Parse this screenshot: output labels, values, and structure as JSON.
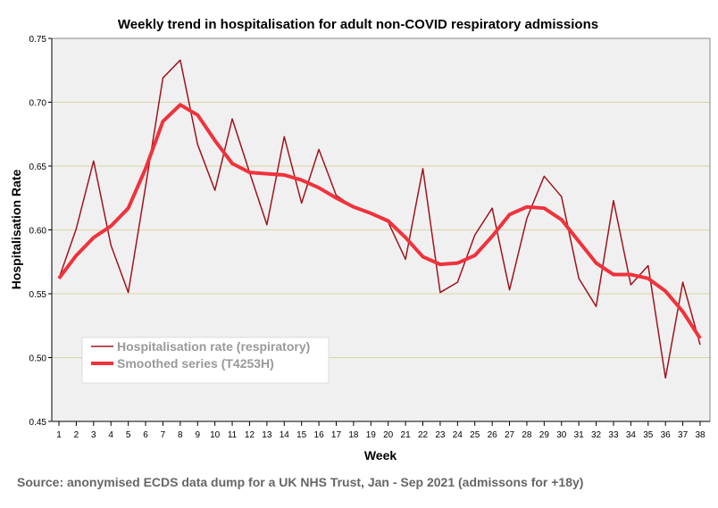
{
  "chart_data": {
    "type": "line",
    "title": "Weekly trend in hospitalisation for adult non-COVID respiratory admissions",
    "xlabel": "Week",
    "ylabel": "Hospitalisation Rate",
    "ylim": [
      0.45,
      0.75
    ],
    "yticks": [
      "0.45",
      "0.50",
      "0.55",
      "0.60",
      "0.65",
      "0.70",
      "0.75"
    ],
    "grid": true,
    "legend_placement": "bottom-left",
    "x": [
      1,
      2,
      3,
      4,
      5,
      6,
      7,
      8,
      9,
      10,
      11,
      12,
      13,
      14,
      15,
      16,
      17,
      18,
      19,
      20,
      21,
      22,
      23,
      24,
      25,
      26,
      27,
      28,
      29,
      30,
      31,
      32,
      33,
      34,
      35,
      36,
      37,
      38
    ],
    "series": [
      {
        "name": "Hospitalisation rate (respiratory)",
        "color": "#a0141e",
        "values": [
          0.562,
          0.601,
          0.654,
          0.588,
          0.551,
          0.634,
          0.719,
          0.733,
          0.667,
          0.631,
          0.687,
          0.645,
          0.604,
          0.673,
          0.621,
          0.663,
          0.627,
          0.618,
          0.613,
          0.606,
          0.577,
          0.648,
          0.551,
          0.559,
          0.596,
          0.617,
          0.553,
          0.609,
          0.642,
          0.626,
          0.562,
          0.54,
          0.623,
          0.557,
          0.572,
          0.484,
          0.559,
          0.51
        ]
      },
      {
        "name": "Smoothed series (T4253H)",
        "color": "#f0323c",
        "values": [
          0.562,
          0.58,
          0.594,
          0.603,
          0.617,
          0.648,
          0.685,
          0.698,
          0.69,
          0.67,
          0.652,
          0.645,
          0.644,
          0.643,
          0.639,
          0.633,
          0.625,
          0.618,
          0.613,
          0.607,
          0.594,
          0.579,
          0.573,
          0.574,
          0.58,
          0.595,
          0.612,
          0.618,
          0.617,
          0.608,
          0.591,
          0.574,
          0.565,
          0.565,
          0.562,
          0.552,
          0.536,
          0.515
        ]
      }
    ]
  },
  "source_note": "Source: anonymised ECDS data dump for a UK NHS Trust, Jan - Sep 2021 (admissons for +18y)"
}
